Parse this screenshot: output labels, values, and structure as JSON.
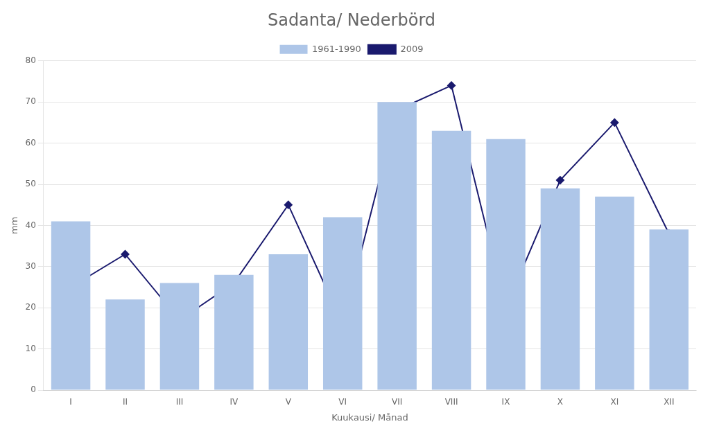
{
  "chart_data": {
    "type": "bar",
    "title": "Sadanta/ Nederbörd",
    "xlabel": "Kuukausi/ Månad",
    "ylabel": "mm",
    "categories": [
      "I",
      "II",
      "III",
      "IV",
      "V",
      "VI",
      "VII",
      "VIII",
      "IX",
      "X",
      "XI",
      "XII"
    ],
    "series": [
      {
        "name": "1961-1990",
        "type": "bar",
        "color": "#aec6e8",
        "values": [
          41,
          22,
          26,
          28,
          33,
          42,
          70,
          63,
          61,
          49,
          47,
          39
        ]
      },
      {
        "name": "2009",
        "type": "line",
        "color": "#1a1a6e",
        "marker": "diamond",
        "values": [
          25,
          33,
          17,
          26,
          45,
          16,
          68,
          74,
          20,
          51,
          65,
          38
        ]
      }
    ],
    "ylim": [
      0,
      80
    ],
    "yticks": [
      0,
      10,
      20,
      30,
      40,
      50,
      60,
      70,
      80
    ],
    "grid": true,
    "legend": "top"
  }
}
